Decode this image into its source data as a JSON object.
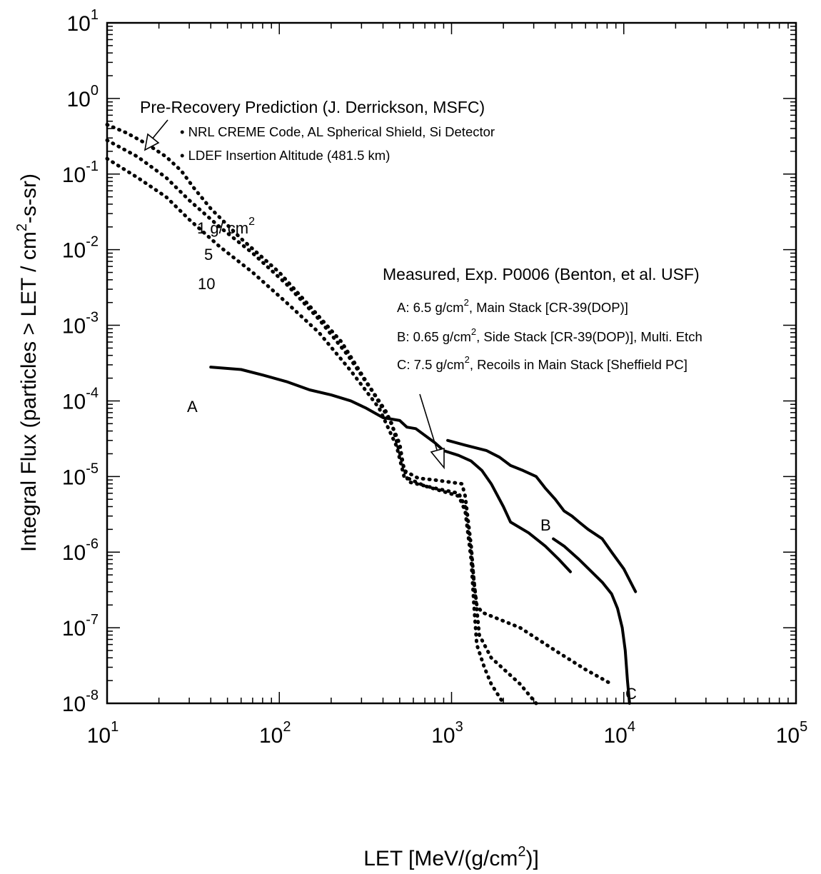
{
  "chart_data": {
    "type": "line",
    "x_scale": "log",
    "y_scale": "log",
    "xlim": [
      10,
      100000
    ],
    "ylim": [
      1e-08,
      10
    ],
    "grid": false,
    "xlabel": "LET [MeV/(g/cm²)]",
    "ylabel": "Integral Flux (particles > LET / cm²-s-sr)",
    "x_tick_labels": [
      {
        "value": 10,
        "base": "10",
        "exp": "1"
      },
      {
        "value": 100,
        "base": "10",
        "exp": "2"
      },
      {
        "value": 1000,
        "base": "10",
        "exp": "3"
      },
      {
        "value": 10000,
        "base": "10",
        "exp": "4"
      },
      {
        "value": 100000,
        "base": "10",
        "exp": "5"
      }
    ],
    "y_tick_labels": [
      {
        "value": 10,
        "base": "10",
        "exp": "1"
      },
      {
        "value": 1,
        "base": "10",
        "exp": "0"
      },
      {
        "value": 0.1,
        "base": "10",
        "exp": "-1"
      },
      {
        "value": 0.01,
        "base": "10",
        "exp": "-2"
      },
      {
        "value": 0.001,
        "base": "10",
        "exp": "-3"
      },
      {
        "value": 0.0001,
        "base": "10",
        "exp": "-4"
      },
      {
        "value": 1e-05,
        "base": "10",
        "exp": "-5"
      },
      {
        "value": 1e-06,
        "base": "10",
        "exp": "-6"
      },
      {
        "value": 1e-07,
        "base": "10",
        "exp": "-7"
      },
      {
        "value": 1e-08,
        "base": "10",
        "exp": "-8"
      }
    ],
    "series": [
      {
        "label": "1 g/ cm²",
        "style": "dotted",
        "points": [
          [
            10,
            0.45
          ],
          [
            13,
            0.35
          ],
          [
            17,
            0.25
          ],
          [
            22,
            0.17
          ],
          [
            27,
            0.11
          ],
          [
            32,
            0.065
          ],
          [
            40,
            0.035
          ],
          [
            60,
            0.014
          ],
          [
            100,
            0.005
          ],
          [
            150,
            0.0018
          ],
          [
            230,
            0.0006
          ],
          [
            320,
            0.00018
          ],
          [
            420,
            7e-05
          ],
          [
            500,
            2.7e-05
          ],
          [
            530,
            1.2e-05
          ],
          [
            640,
            9.5e-06
          ],
          [
            800,
            9e-06
          ],
          [
            1150,
            8e-06
          ],
          [
            1200,
            5.5e-06
          ],
          [
            1300,
            1.2e-06
          ],
          [
            1350,
            4e-07
          ],
          [
            1400,
            2e-07
          ],
          [
            1500,
            1.6e-07
          ],
          [
            2500,
            1e-07
          ],
          [
            4000,
            5e-08
          ],
          [
            6000,
            2.8e-08
          ],
          [
            8500,
            1.8e-08
          ]
        ]
      },
      {
        "label": "5",
        "style": "dotted",
        "points": [
          [
            10,
            0.28
          ],
          [
            15,
            0.17
          ],
          [
            22,
            0.09
          ],
          [
            30,
            0.045
          ],
          [
            45,
            0.02
          ],
          [
            70,
            0.009
          ],
          [
            110,
            0.0035
          ],
          [
            170,
            0.0012
          ],
          [
            250,
            0.0004
          ],
          [
            350,
            0.00013
          ],
          [
            450,
            5e-05
          ],
          [
            520,
            1.5e-05
          ],
          [
            560,
            8.5e-06
          ],
          [
            800,
            7e-06
          ],
          [
            1100,
            6e-06
          ],
          [
            1200,
            4e-06
          ],
          [
            1300,
            1e-06
          ],
          [
            1380,
            2.5e-07
          ],
          [
            1450,
            8e-08
          ],
          [
            1700,
            4e-08
          ],
          [
            2500,
            1.8e-08
          ],
          [
            3100,
            1e-08
          ]
        ]
      },
      {
        "label": "10",
        "style": "dotted",
        "points": [
          [
            10,
            0.16
          ],
          [
            15,
            0.09
          ],
          [
            22,
            0.05
          ],
          [
            30,
            0.025
          ],
          [
            45,
            0.011
          ],
          [
            70,
            0.005
          ],
          [
            110,
            0.002
          ],
          [
            170,
            0.0008
          ],
          [
            260,
            0.00025
          ],
          [
            380,
            8e-05
          ],
          [
            480,
            2.5e-05
          ],
          [
            530,
            1e-05
          ],
          [
            700,
            7.5e-06
          ],
          [
            1100,
            5.5e-06
          ],
          [
            1200,
            3.5e-06
          ],
          [
            1300,
            8e-07
          ],
          [
            1350,
            2e-07
          ],
          [
            1400,
            6e-08
          ],
          [
            1550,
            3e-08
          ],
          [
            1700,
            1.8e-08
          ],
          [
            2000,
            1e-08
          ]
        ]
      },
      {
        "label": "A",
        "style": "solid",
        "points": [
          [
            40,
            0.00028
          ],
          [
            60,
            0.00026
          ],
          [
            80,
            0.00022
          ],
          [
            110,
            0.00018
          ],
          [
            150,
            0.00014
          ],
          [
            200,
            0.00012
          ],
          [
            260,
            0.0001
          ],
          [
            320,
            8e-05
          ],
          [
            400,
            6e-05
          ],
          [
            500,
            5.5e-05
          ],
          [
            550,
            4.5e-05
          ],
          [
            620,
            4.3e-05
          ],
          [
            700,
            3.5e-05
          ],
          [
            800,
            2.8e-05
          ],
          [
            900,
            2.2e-05
          ],
          [
            1100,
            1.9e-05
          ],
          [
            1300,
            1.6e-05
          ],
          [
            1500,
            1.2e-05
          ],
          [
            1700,
            8e-06
          ],
          [
            2000,
            4e-06
          ],
          [
            2200,
            2.5e-06
          ],
          [
            2800,
            1.8e-06
          ],
          [
            3500,
            1.2e-06
          ],
          [
            4200,
            8e-07
          ],
          [
            4900,
            5.5e-07
          ]
        ]
      },
      {
        "label": "B",
        "style": "solid",
        "points": [
          [
            950,
            3e-05
          ],
          [
            1200,
            2.6e-05
          ],
          [
            1600,
            2.2e-05
          ],
          [
            1900,
            1.8e-05
          ],
          [
            2200,
            1.4e-05
          ],
          [
            2600,
            1.2e-05
          ],
          [
            3100,
            1e-05
          ],
          [
            3500,
            7e-06
          ],
          [
            4000,
            5e-06
          ],
          [
            4500,
            3.5e-06
          ],
          [
            5000,
            3e-06
          ],
          [
            5500,
            2.5e-06
          ],
          [
            6200,
            2e-06
          ],
          [
            7500,
            1.5e-06
          ],
          [
            8500,
            1e-06
          ],
          [
            10000,
            6e-07
          ],
          [
            11700,
            3e-07
          ]
        ]
      },
      {
        "label": "C",
        "style": "solid",
        "points": [
          [
            3900,
            1.5e-06
          ],
          [
            4500,
            1.2e-06
          ],
          [
            5500,
            8e-07
          ],
          [
            6500,
            5.5e-07
          ],
          [
            7500,
            4e-07
          ],
          [
            8500,
            2.8e-07
          ],
          [
            9200,
            1.8e-07
          ],
          [
            9800,
            1e-07
          ],
          [
            10200,
            5e-08
          ],
          [
            10500,
            2e-08
          ],
          [
            10800,
            1e-08
          ]
        ]
      }
    ],
    "annotations": {
      "prediction_title": "Pre-Recovery Prediction (J. Derrickson, MSFC)",
      "prediction_line1": "• NRL CREME Code, AL Spherical Shield, Si Detector",
      "prediction_line2": "• LDEF Insertion Altitude (481.5 km)",
      "measured_title": "Measured, Exp. P0006 (Benton, et al. USF)",
      "measured_a_pre": "A: 6.5 g/cm",
      "measured_a_post": ", Main Stack [CR-39(DOP)]",
      "measured_b_pre": "B: 0.65 g/cm",
      "measured_b_post": ", Side Stack [CR-39(DOP)], Multi. Etch",
      "measured_c_pre": "C: 7.5 g/cm",
      "measured_c_post": ", Recoils in Main Stack [Sheffield PC]",
      "sq": "2",
      "label_1g_pre": "1 g/ cm",
      "label_1g_exp": "2",
      "label_5": "5",
      "label_10": "10",
      "label_A": "A",
      "label_B": "B",
      "label_C": "C",
      "xlabel_pre": "LET [MeV/(g/cm",
      "xlabel_exp": "2",
      "xlabel_post": ")]",
      "ylabel_pre": "Integral Flux (particles > LET / cm",
      "ylabel_exp": "2",
      "ylabel_post": "-s-sr)"
    }
  }
}
